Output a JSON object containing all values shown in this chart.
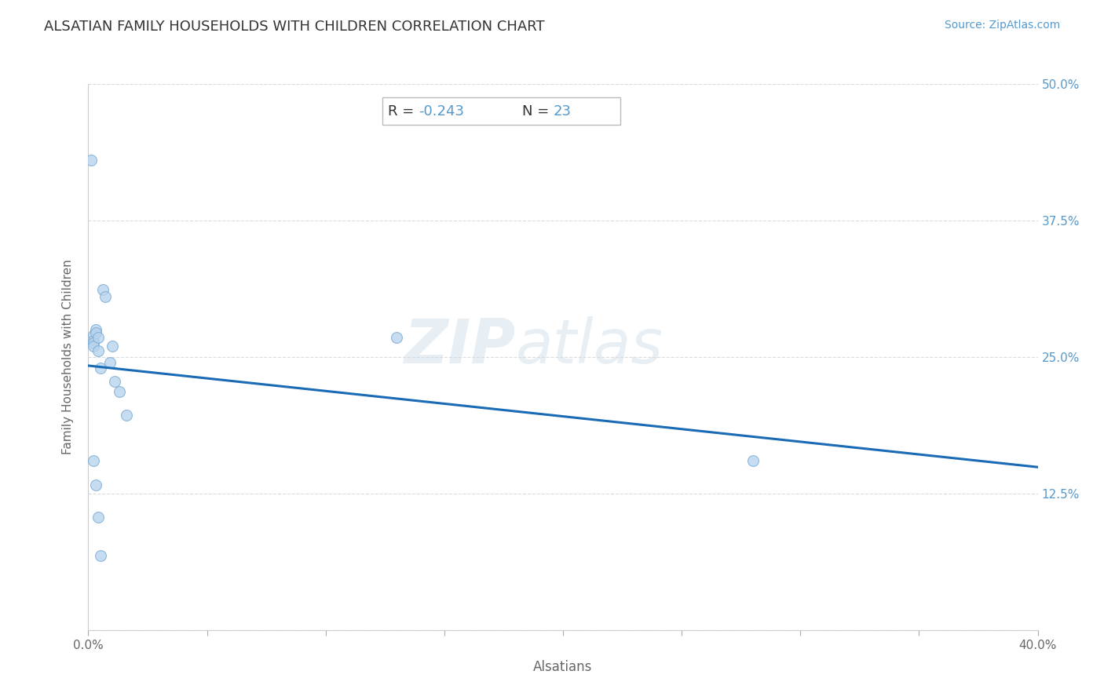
{
  "title": "ALSATIAN FAMILY HOUSEHOLDS WITH CHILDREN CORRELATION CHART",
  "source_text": "Source: ZipAtlas.com",
  "xlabel": "Alsatians",
  "ylabel": "Family Households with Children",
  "R_val": "-0.243",
  "N_val": "23",
  "x_min": 0.0,
  "x_max": 0.4,
  "y_min": 0.0,
  "y_max": 0.5,
  "x_ticks": [
    0.0,
    0.05,
    0.1,
    0.15,
    0.2,
    0.25,
    0.3,
    0.35,
    0.4
  ],
  "x_tick_labels": [
    "0.0%",
    "",
    "",
    "",
    "",
    "",
    "",
    "",
    "40.0%"
  ],
  "y_ticks": [
    0.0,
    0.125,
    0.25,
    0.375,
    0.5
  ],
  "y_tick_labels_right": [
    "",
    "12.5%",
    "25.0%",
    "37.5%",
    "50.0%"
  ],
  "scatter_x": [
    0.001,
    0.002,
    0.002,
    0.002,
    0.002,
    0.003,
    0.003,
    0.004,
    0.004,
    0.005,
    0.006,
    0.007,
    0.009,
    0.01,
    0.011,
    0.013,
    0.016,
    0.13,
    0.28,
    0.002,
    0.003,
    0.004,
    0.005
  ],
  "scatter_y": [
    0.43,
    0.27,
    0.265,
    0.263,
    0.26,
    0.275,
    0.272,
    0.268,
    0.256,
    0.24,
    0.312,
    0.305,
    0.245,
    0.26,
    0.228,
    0.218,
    0.197,
    0.268,
    0.155,
    0.155,
    0.133,
    0.103,
    0.068
  ],
  "scatter_color": "#b8d4ed",
  "scatter_edgecolor": "#7aabd4",
  "scatter_size": 100,
  "scatter_alpha": 0.8,
  "line_color": "#1a6bb5",
  "line_width": 2.2,
  "grid_color": "#cccccc",
  "grid_style": "--",
  "grid_alpha": 0.7,
  "watermark_zip": "ZIP",
  "watermark_atlas": "atlas",
  "watermark_color": "#ccdde8",
  "watermark_alpha": 0.45,
  "bg_color": "#ffffff",
  "title_color": "#333333",
  "title_fontsize": 13,
  "axis_label_color": "#666666",
  "blue_color": "#5599cc",
  "dark_color": "#333333",
  "annotation_box_facecolor": "#ffffff",
  "annotation_box_edgecolor": "#bbbbbb"
}
